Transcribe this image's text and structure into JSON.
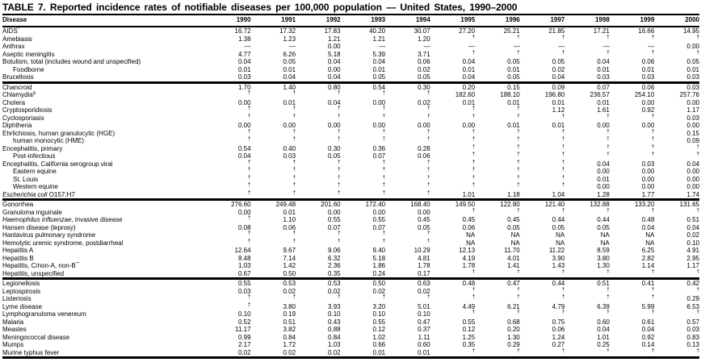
{
  "title": "TABLE 7. Reported incidence rates of notifiable diseases per 100,000 population — United States, 1990–2000",
  "columns": {
    "disease": "Disease",
    "years": [
      "1990",
      "1991",
      "1992",
      "1993",
      "1994",
      "1995",
      "1996",
      "1997",
      "1998",
      "1999",
      "2000"
    ]
  },
  "groups": [
    {
      "rows": [
        {
          "label": "AIDS",
          "sup": "*",
          "values": [
            "16.72",
            "17.32",
            "17.83",
            "40.20",
            "30.07",
            "27.20",
            "25.21",
            "21.85",
            "17.21",
            "16.66",
            "14.95"
          ]
        },
        {
          "label": "Amebiasis",
          "values": [
            "1.38",
            "1.23",
            "1.21",
            "1.21",
            "1.20",
            "†",
            "†",
            "†",
            "†",
            "†",
            "†"
          ]
        },
        {
          "label": "Anthrax",
          "values": [
            "—",
            "—",
            "0.00",
            "—",
            "—",
            "—",
            "—",
            "—",
            "—",
            "—",
            "0.00"
          ]
        },
        {
          "label": "Aseptic meningitis",
          "values": [
            "4.77",
            "6.26",
            "5.18",
            "5.39",
            "3.71",
            "†",
            "†",
            "†",
            "†",
            "†",
            "†"
          ]
        },
        {
          "label": "Botulism, total (includes wound and unspecified)",
          "values": [
            "0.04",
            "0.05",
            "0.04",
            "0.04",
            "0.06",
            "0.04",
            "0.05",
            "0.05",
            "0.04",
            "0.06",
            "0.05"
          ]
        },
        {
          "label": "Foodborne",
          "indent": true,
          "values": [
            "0.01",
            "0.01",
            "0.00",
            "0.01",
            "0.02",
            "0.01",
            "0.01",
            "0.02",
            "0.01",
            "0.01",
            "0.01"
          ]
        },
        {
          "label": "Brucellosis",
          "values": [
            "0.03",
            "0.04",
            "0.04",
            "0.05",
            "0.05",
            "0.04",
            "0.05",
            "0.04",
            "0.03",
            "0.03",
            "0.03"
          ]
        }
      ]
    },
    {
      "rows": [
        {
          "label": "Chancroid",
          "values": [
            "1.70",
            "1.40",
            "0.80",
            "0.54",
            "0.30",
            "0.20",
            "0.15",
            "0.09",
            "0.07",
            "0.06",
            "0.03"
          ]
        },
        {
          "label": "Chlamydia",
          "sup": "§",
          "values": [
            "†",
            "†",
            "†",
            "†",
            "†",
            "182.60",
            "188.10",
            "196.80",
            "236.57",
            "254.10",
            "257.76"
          ]
        },
        {
          "label": "Cholera",
          "values": [
            "0.00",
            "0.01",
            "0.04",
            "0.00",
            "0.02",
            "0.01",
            "0.01",
            "0.01",
            "0.01",
            "0.00",
            "0.00"
          ]
        },
        {
          "label": "Cryptosporidiosis",
          "values": [
            "†",
            "†",
            "†",
            "†",
            "†",
            "†",
            "†",
            "1.12",
            "1.61",
            "0.92",
            "1.17"
          ]
        },
        {
          "label": "Cyclosporiasis",
          "values": [
            "†",
            "†",
            "†",
            "†",
            "†",
            "†",
            "†",
            "†",
            "†",
            "†",
            "0.03"
          ]
        },
        {
          "label": "Diphtheria",
          "values": [
            "0.00",
            "0.00",
            "0.00",
            "0.00",
            "0.00",
            "0.00",
            "0.01",
            "0.01",
            "0.00",
            "0.00",
            "0.00"
          ]
        },
        {
          "label": "Ehrlichiosis, human granulocytic (HGE)",
          "values": [
            "†",
            "†",
            "†",
            "†",
            "†",
            "†",
            "†",
            "†",
            "†",
            "†",
            "0.15"
          ]
        },
        {
          "label": "human monocytic (HME)",
          "indent": true,
          "values": [
            "†",
            "†",
            "†",
            "†",
            "†",
            "†",
            "†",
            "†",
            "†",
            "†",
            "0.09"
          ]
        },
        {
          "label": "Encephalitis, primary",
          "values": [
            "0.54",
            "0.40",
            "0.30",
            "0.36",
            "0.28",
            "†",
            "†",
            "†",
            "†",
            "†",
            "†"
          ]
        },
        {
          "label": "Post-infectious",
          "indent": true,
          "values": [
            "0.04",
            "0.03",
            "0.05",
            "0.07",
            "0.06",
            "†",
            "†",
            "†",
            "†",
            "†",
            "†"
          ]
        },
        {
          "label": "Encephalitis, California serogroup viral",
          "values": [
            "†",
            "†",
            "†",
            "†",
            "†",
            "†",
            "†",
            "†",
            "0.04",
            "0.03",
            "0.04"
          ]
        },
        {
          "label": "Eastern equine",
          "indent": true,
          "values": [
            "†",
            "†",
            "†",
            "†",
            "†",
            "†",
            "†",
            "†",
            "0.00",
            "0.00",
            "0.00"
          ]
        },
        {
          "label": "St. Louis",
          "indent": true,
          "values": [
            "†",
            "†",
            "†",
            "†",
            "†",
            "†",
            "†",
            "†",
            "0.01",
            "0.00",
            "0.00"
          ]
        },
        {
          "label": "Western equine",
          "indent": true,
          "values": [
            "†",
            "†",
            "†",
            "†",
            "†",
            "†",
            "†",
            "†",
            "0.00",
            "0.00",
            "0.00"
          ]
        },
        {
          "italic": "Escherichia coli",
          "label": " O157:H7",
          "values": [
            "†",
            "†",
            "†",
            "†",
            "†",
            "1.01",
            "1.18",
            "1.04",
            "1.28",
            "1.77",
            "1.74"
          ]
        }
      ]
    },
    {
      "rows": [
        {
          "label": "Gonorrhea",
          "values": [
            "276.60",
            "249.48",
            "201.60",
            "172.40",
            "168.40",
            "149.50",
            "122.80",
            "121.40",
            "132.88",
            "133.20",
            "131.65"
          ]
        },
        {
          "label": "Granuloma inguinale",
          "values": [
            "0.00",
            "0.01",
            "0.00",
            "0.00",
            "0.00",
            "†",
            "†",
            "†",
            "†",
            "†",
            "†"
          ]
        },
        {
          "italic": "Haemophilus influenzae",
          "label": ", invasive disease",
          "values": [
            "†",
            "1.10",
            "0.55",
            "0.55",
            "0.45",
            "0.45",
            "0.45",
            "0.44",
            "0.44",
            "0.48",
            "0.51"
          ]
        },
        {
          "label": "Hansen disease (leprosy)",
          "values": [
            "0.08",
            "0.06",
            "0.07",
            "0.07",
            "0.05",
            "0.06",
            "0.05",
            "0.05",
            "0.05",
            "0.04",
            "0.04"
          ]
        },
        {
          "label": "Hantavirus pulmonary syndrome",
          "values": [
            "†",
            "†",
            "†",
            "†",
            "†",
            "NA",
            "NA",
            "NA",
            "NA",
            "NA",
            "0.02"
          ]
        },
        {
          "label": "Hemolytic uremic syndrome, postdiarrheal",
          "values": [
            "†",
            "†",
            "†",
            "†",
            "†",
            "NA",
            "NA",
            "NA",
            "NA",
            "NA",
            "0.10"
          ]
        },
        {
          "label": "Hepatitis A",
          "values": [
            "12.64",
            "9.67",
            "9.06",
            "9.40",
            "10.29",
            "12.13",
            "11.70",
            "11.22",
            "8.59",
            "6.25",
            "4.91"
          ]
        },
        {
          "label": "Hepatitis B",
          "values": [
            "8.48",
            "7.14",
            "6.32",
            "5.18",
            "4.81",
            "4.19",
            "4.01",
            "3.90",
            "3.80",
            "2.82",
            "2.95"
          ]
        },
        {
          "label": "Hepatitis, C/non-A, non-B",
          "sup": "**",
          "values": [
            "1.03",
            "1.42",
            "2.36",
            "1.86",
            "1.78",
            "1.78",
            "1.41",
            "1.43",
            "1.30",
            "1.14",
            "1.17"
          ]
        },
        {
          "label": "Hepatitis, unspecified",
          "values": [
            "0.67",
            "0.50",
            "0.35",
            "0.24",
            "0.17",
            "†",
            "†",
            "†",
            "†",
            "†",
            "†"
          ]
        }
      ]
    },
    {
      "rows": [
        {
          "label": "Legionellosis",
          "values": [
            "0.55",
            "0.53",
            "0.53",
            "0.50",
            "0.63",
            "0.48",
            "0.47",
            "0.44",
            "0.51",
            "0.41",
            "0.42"
          ]
        },
        {
          "label": "Leptospirosis",
          "values": [
            "0.03",
            "0.02",
            "0.02",
            "0.02",
            "0.02",
            "†",
            "†",
            "†",
            "†",
            "†",
            "†"
          ]
        },
        {
          "label": "Listeriosis",
          "values": [
            "†",
            "†",
            "†",
            "†",
            "†",
            "†",
            "†",
            "†",
            "†",
            "†",
            "0.29"
          ]
        },
        {
          "label": "Lyme disease",
          "values": [
            "†",
            "3.80",
            "3.93",
            "3.20",
            "5.01",
            "4.49",
            "6.21",
            "4.79",
            "6.39",
            "5.99",
            "6.53"
          ]
        },
        {
          "label": "Lymphogranuloma venereum",
          "values": [
            "0.10",
            "0.19",
            "0.10",
            "0.10",
            "0.10",
            "†",
            "†",
            "†",
            "†",
            "†",
            "†"
          ]
        },
        {
          "label": "Malaria",
          "values": [
            "0.52",
            "0.51",
            "0.43",
            "0.55",
            "0.47",
            "0.55",
            "0.68",
            "0.75",
            "0.60",
            "0.61",
            "0.57"
          ]
        },
        {
          "label": "Measles",
          "values": [
            "11.17",
            "3.82",
            "0.88",
            "0.12",
            "0.37",
            "0.12",
            "0.20",
            "0.06",
            "0.04",
            "0.04",
            "0.03"
          ]
        },
        {
          "label": "Meningococcal disease",
          "values": [
            "0.99",
            "0.84",
            "0.84",
            "1.02",
            "1.11",
            "1.25",
            "1.30",
            "1.24",
            "1.01",
            "0.92",
            "0.83"
          ]
        },
        {
          "label": "Mumps",
          "values": [
            "2.17",
            "1.72",
            "1.03",
            "0.66",
            "0.60",
            "0.35",
            "0.29",
            "0.27",
            "0.25",
            "0.14",
            "0.13"
          ]
        },
        {
          "label": "Murine typhus fever",
          "values": [
            "0.02",
            "0.02",
            "0.02",
            "0.01",
            "0.01",
            "†",
            "†",
            "†",
            "†",
            "†",
            "†"
          ]
        }
      ]
    }
  ]
}
